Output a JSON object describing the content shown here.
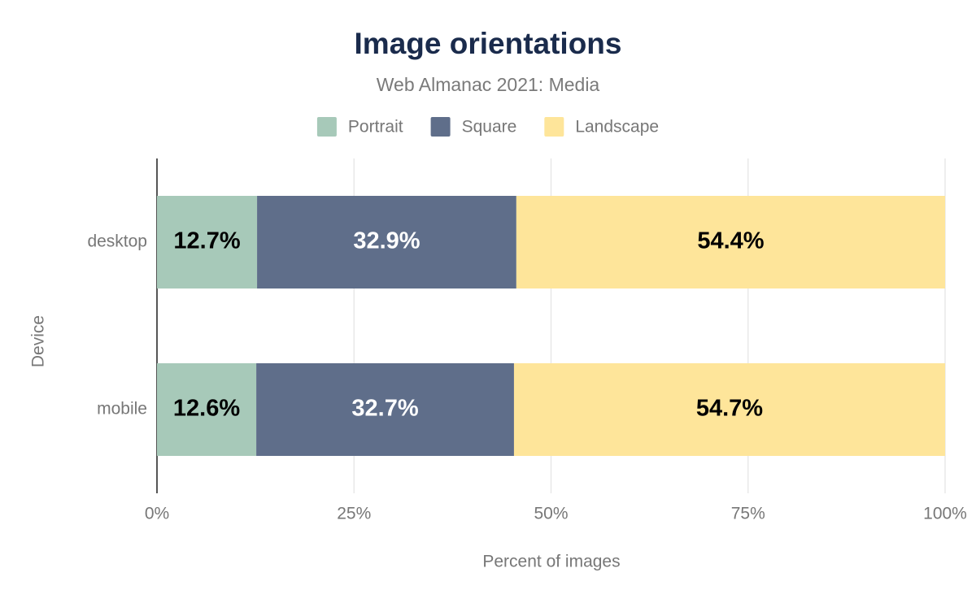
{
  "chart_data": {
    "type": "stacked_barh",
    "title": "Image orientations",
    "subtitle": "Web Almanac 2021: Media",
    "x_label": "Percent of images",
    "y_label": "Device",
    "categories": [
      "desktop",
      "mobile"
    ],
    "series": [
      {
        "name": "Portrait",
        "color": "#a7c9b9",
        "label_color": "#000000",
        "values": [
          12.7,
          12.6
        ],
        "value_labels": [
          "12.7%",
          "12.6%"
        ]
      },
      {
        "name": "Square",
        "color": "#5f6e8a",
        "label_color": "#ffffff",
        "values": [
          32.9,
          32.7
        ],
        "value_labels": [
          "32.9%",
          "32.7%"
        ]
      },
      {
        "name": "Landscape",
        "color": "#fee59a",
        "label_color": "#000000",
        "values": [
          54.4,
          54.7
        ],
        "value_labels": [
          "54.4%",
          "54.7%"
        ]
      }
    ],
    "xlim": [
      0,
      100
    ],
    "xticks": [
      {
        "value": 0,
        "label": "0%"
      },
      {
        "value": 25,
        "label": "25%"
      },
      {
        "value": 50,
        "label": "50%"
      },
      {
        "value": 75,
        "label": "75%"
      },
      {
        "value": 100,
        "label": "100%"
      }
    ],
    "grid": true,
    "legend": "top"
  }
}
